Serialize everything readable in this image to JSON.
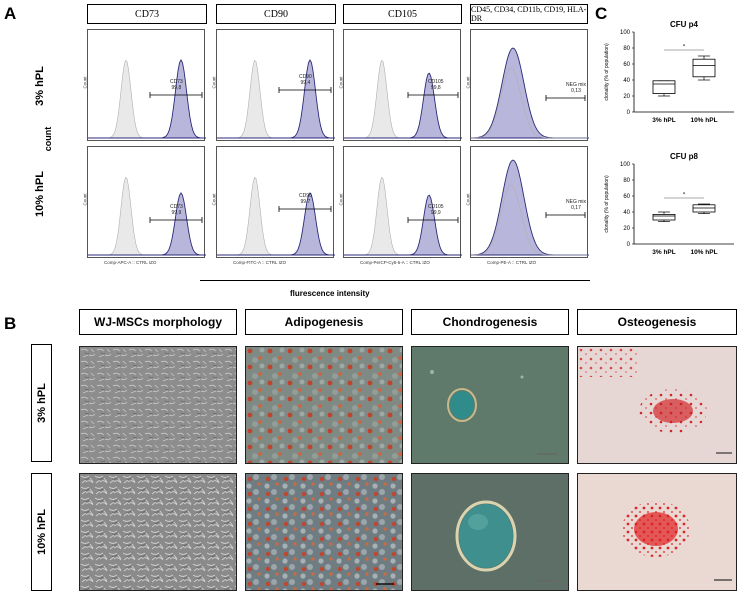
{
  "panel_a": {
    "letter": "A",
    "columns": [
      "CD73",
      "CD90",
      "CD105",
      "CD45, CD34, CD11b, CD19, HLA-DR"
    ],
    "rows": [
      "3% hPL",
      "10% hPL"
    ],
    "count_label": "count",
    "x_axis_title": "flurescence intensity",
    "axis_labels": [
      "Comp-APC-A :: CTRL IZO",
      "Comp-FITC-A :: CTRL IZO",
      "Comp-PerCP-Cy5-5-A :: CTRL IZO",
      "Comp-PE-A :: CTRL IZO"
    ],
    "y_label": "Count",
    "gates": [
      [
        "CD73",
        "99,8"
      ],
      [
        "CD90",
        "99,4"
      ],
      [
        "CD105",
        "99,8"
      ],
      [
        "NEG mix",
        "0,13"
      ],
      [
        "CD73",
        "99,9"
      ],
      [
        "CD90",
        "99,7"
      ],
      [
        "CD105",
        "99,9"
      ],
      [
        "NEG mix",
        "0,17"
      ]
    ]
  },
  "panel_b": {
    "letter": "B",
    "columns": [
      "WJ-MSCs morphology",
      "Adipogenesis",
      "Chondrogenesis",
      "Osteogenesis"
    ],
    "rows": [
      "3% hPL",
      "10% hPL"
    ]
  },
  "panel_c": {
    "letter": "C",
    "chart_data": [
      {
        "type": "box",
        "title": "CFU p4",
        "ylabel": "clonality (% of population)",
        "ylim": [
          0,
          100
        ],
        "yticks": [
          "100",
          "80",
          "60",
          "40",
          "20",
          "0"
        ],
        "categories": [
          "3% hPL",
          "10% hPL"
        ],
        "boxes": [
          {
            "min": 20,
            "q1": 23,
            "median": 35,
            "q3": 39,
            "max": 39
          },
          {
            "min": 40,
            "q1": 44,
            "median": 58,
            "q3": 66,
            "max": 70
          }
        ],
        "significance": "*"
      },
      {
        "type": "box",
        "title": "CFU p8",
        "ylabel": "clonality (% of population)",
        "ylim": [
          0,
          100
        ],
        "yticks": [
          "100",
          "80",
          "60",
          "40",
          "20",
          "0"
        ],
        "categories": [
          "3% hPL",
          "10% hPL"
        ],
        "boxes": [
          {
            "min": 28,
            "q1": 30,
            "median": 35,
            "q3": 37,
            "max": 40
          },
          {
            "min": 38,
            "q1": 40,
            "median": 45,
            "q3": 49,
            "max": 50
          }
        ],
        "significance": "*"
      }
    ]
  },
  "colors": {
    "histogram_fill": "#b9b6dc",
    "histogram_line": "#2a2a78",
    "control_fill": "#e9e9e9",
    "control_line": "#b0b0b0"
  }
}
